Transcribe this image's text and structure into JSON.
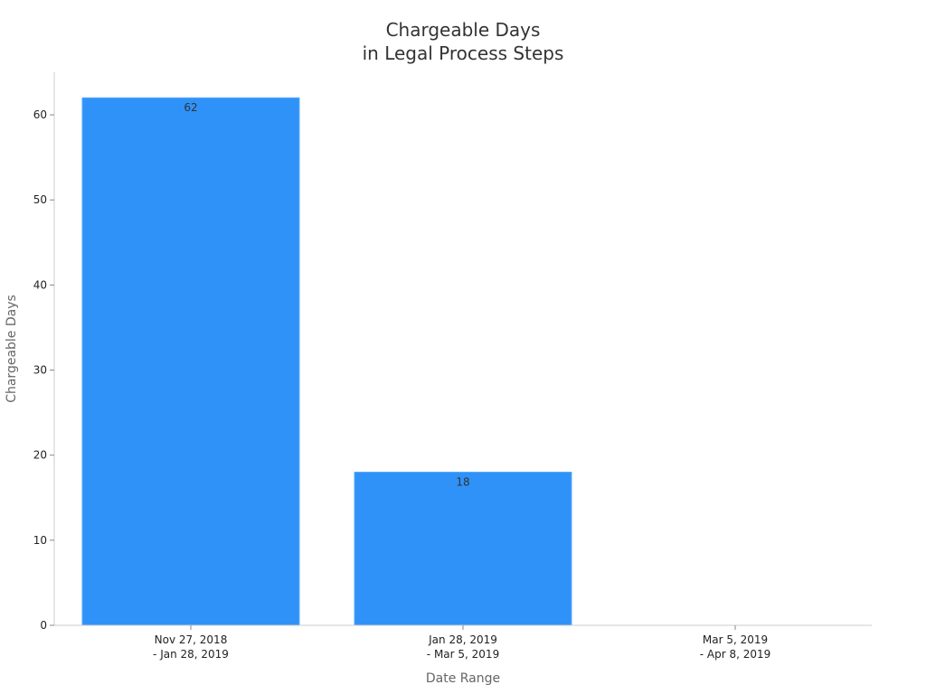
{
  "chart_data": {
    "type": "bar",
    "title": [
      "Chargeable Days",
      "in Legal Process Steps"
    ],
    "xlabel": "Date Range",
    "ylabel": "Chargeable Days",
    "categories": [
      [
        "Nov 27, 2018",
        "- Jan 28, 2019"
      ],
      [
        "Jan 28, 2019",
        "- Mar 5, 2019"
      ],
      [
        "Mar 5, 2019",
        "- Apr 8, 2019"
      ]
    ],
    "values": [
      62,
      18,
      0
    ],
    "data_labels": [
      "62",
      "18",
      ""
    ],
    "ylim": [
      0,
      65
    ],
    "yticks": [
      0,
      10,
      20,
      30,
      40,
      50,
      60
    ],
    "bar_color": "#2f92f9",
    "bar_edge_color": "#5aa9fa",
    "grid": false,
    "legend": "none"
  }
}
